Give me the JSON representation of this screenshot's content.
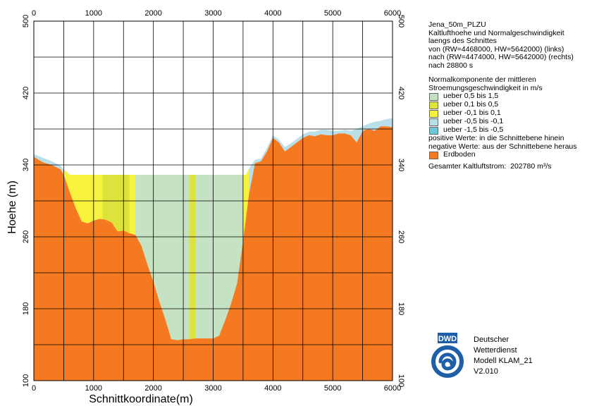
{
  "chart_data": {
    "type": "area",
    "title": "Jena_50m_PLZU",
    "xlabel": "Schnittkoordinate(m)",
    "ylabel": "Hoehe (m)",
    "xlim": [
      0,
      6000
    ],
    "ylim": [
      100,
      500
    ],
    "x_ticks": [
      "0",
      "1000",
      "2000",
      "3000",
      "4000",
      "5000",
      "6000"
    ],
    "y_ticks_left": [
      "100",
      "180",
      "260",
      "340",
      "420",
      "500"
    ],
    "y_ticks_right": [
      "100",
      "180",
      "260",
      "340",
      "420",
      "500"
    ],
    "grid": true,
    "terrain": {
      "name": "Erdboden",
      "x": [
        0,
        150,
        300,
        450,
        500,
        600,
        700,
        800,
        900,
        1000,
        1100,
        1200,
        1300,
        1400,
        1500,
        1600,
        1700,
        1800,
        1900,
        2000,
        2100,
        2200,
        2300,
        2400,
        2500,
        2600,
        2700,
        2800,
        2900,
        3000,
        3100,
        3200,
        3300,
        3400,
        3500,
        3600,
        3700,
        3800,
        3900,
        4000,
        4100,
        4200,
        4300,
        4400,
        4500,
        4600,
        4700,
        4800,
        4900,
        5000,
        5100,
        5200,
        5300,
        5400,
        5500,
        5600,
        5700,
        5800,
        5900,
        6000
      ],
      "y": [
        349,
        343,
        340,
        335,
        329,
        310,
        292,
        277,
        275,
        278,
        280,
        279,
        276,
        266,
        267,
        264,
        262,
        250,
        229,
        210,
        188,
        168,
        146,
        145,
        146,
        146,
        147,
        147,
        147,
        147,
        150,
        167,
        186,
        208,
        255,
        308,
        342,
        344,
        355,
        370,
        365,
        355,
        360,
        365,
        370,
        373,
        372,
        374,
        373,
        373,
        375,
        375,
        373,
        365,
        378,
        380,
        378,
        383,
        383,
        382
      ]
    },
    "cold_air_surface": {
      "x": [
        0,
        150,
        300,
        450,
        500,
        600,
        3550,
        3600,
        3700,
        3800,
        3900,
        4000,
        4100,
        4200,
        4300,
        4400,
        4500,
        4600,
        4700,
        4800,
        4900,
        5000,
        5100,
        5200,
        5300,
        5400,
        5500,
        5600,
        5700,
        5800,
        5900,
        6000
      ],
      "y": [
        352,
        348,
        344,
        339,
        335,
        329,
        329,
        336,
        346,
        347,
        359,
        373,
        368,
        360,
        364,
        369,
        374,
        377,
        377,
        379,
        379,
        378,
        378,
        379,
        378,
        380,
        383,
        386,
        388,
        389,
        391,
        392
      ]
    },
    "bands": [
      {
        "x0": 500,
        "x1": 1150,
        "class": 2
      },
      {
        "x0": 1150,
        "x1": 1600,
        "class": 1
      },
      {
        "x0": 1600,
        "x1": 1700,
        "class": 2
      },
      {
        "x0": 1700,
        "x1": 2600,
        "class": 0
      },
      {
        "x0": 2600,
        "x1": 2700,
        "class": 1
      },
      {
        "x0": 2700,
        "x1": 3500,
        "class": 0
      },
      {
        "x0": 3500,
        "x1": 3600,
        "class": 2
      }
    ],
    "outer_layer_class": 3,
    "legend_classes": [
      {
        "name": "ueber 0,5 bis 1,5",
        "color": "#c5e2c3"
      },
      {
        "name": "ueber 0,1 bis 0,5",
        "color": "#dde33a"
      },
      {
        "name": "ueber -0,1 bis 0,1",
        "color": "#f7f23c"
      },
      {
        "name": "ueber -0,5 bis -0,1",
        "color": "#b9dfe9"
      },
      {
        "name": "ueber -1,5 bis -0,5",
        "color": "#6ec7d4"
      }
    ],
    "ground_color": "#f47920",
    "legend_placement": "right"
  },
  "legend": {
    "title": "Jena_50m_PLZU",
    "desc_lines": [
      "Kaltlufthoehe und Normalgeschwindigkeit",
      "laengs des Schnittes",
      "von (RW=4468000, HW=5642000) (links)",
      "nach (RW=4474000, HW=5642000) (rechts)",
      "nach 28800 s"
    ],
    "section_lines": [
      "Normalkomponente der mittleren",
      "Stroemungsgeschwindigkeit in m/s"
    ],
    "positive_note": "positive Werte: in die Schnittebene hinein",
    "negative_note": "negative Werte: aus der Schnittebene heraus",
    "ground_label": "Erdboden",
    "total_label": "Gesamter Kaltluftstrom:",
    "total_value": "202780 m³/s"
  },
  "credit": {
    "logo_text": "DWD",
    "lines": [
      "Deutscher",
      "Wetterdienst",
      "Modell KLAM_21",
      "V2.010"
    ]
  },
  "colors": {
    "grid": "#000000",
    "logo_blue": "#1f5fa8"
  },
  "icons": [
    "dwd-logo-icon"
  ]
}
